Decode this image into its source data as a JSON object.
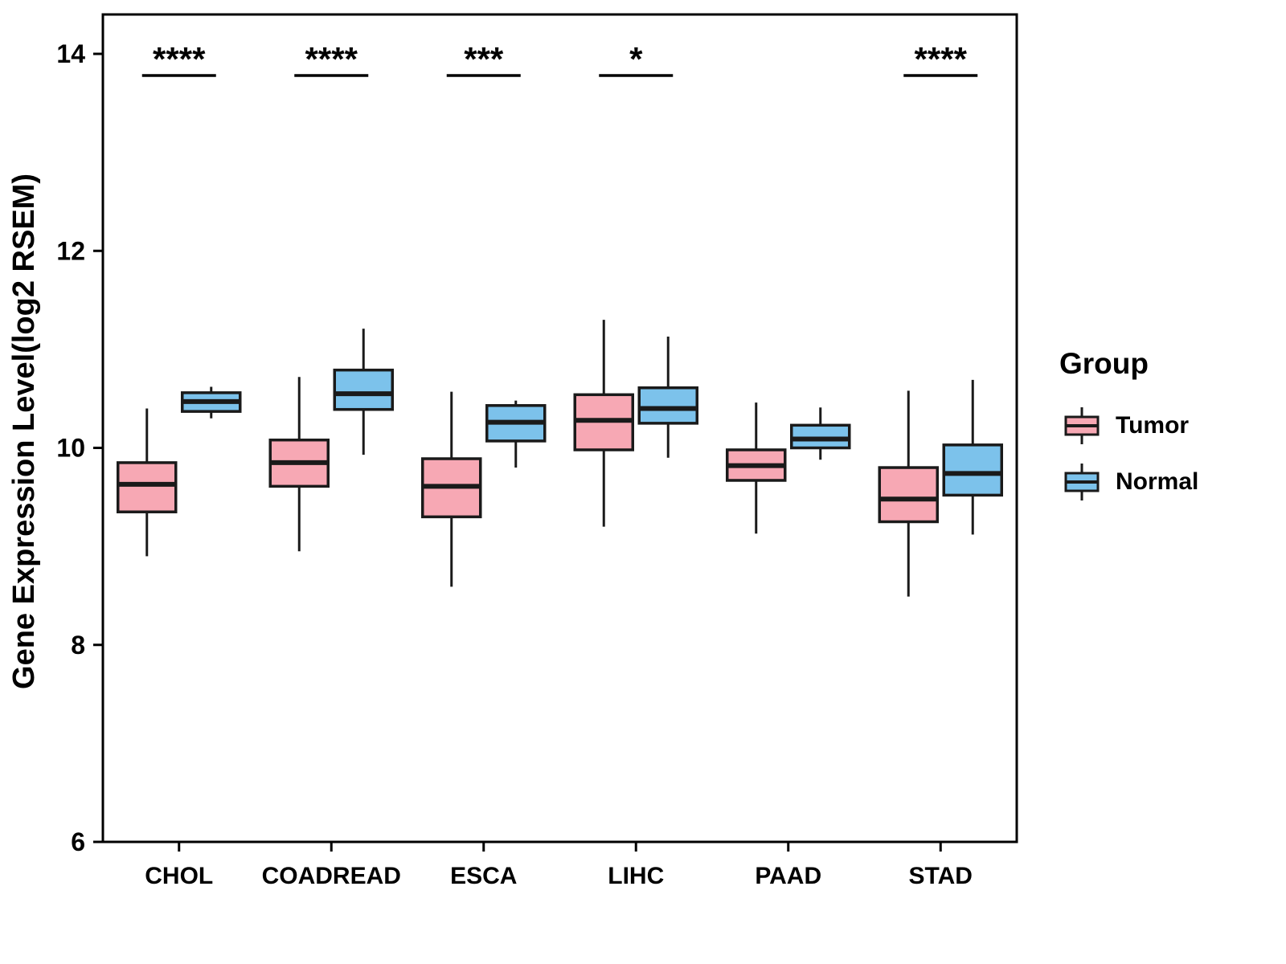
{
  "chart_data": {
    "type": "boxplot",
    "title": "",
    "xlabel": "",
    "ylabel": "Gene Expression Level(log2 RSEM)",
    "ylim": [
      6,
      14.4
    ],
    "yticks": [
      6,
      8,
      10,
      12,
      14
    ],
    "categories": [
      "CHOL",
      "COADREAD",
      "ESCA",
      "LIHC",
      "PAAD",
      "STAD"
    ],
    "significance": [
      "****",
      "****",
      "***",
      "*",
      "",
      "****"
    ],
    "significance_line_y": 13.78,
    "groups": [
      {
        "name": "Tumor",
        "color": "#F7A8B4"
      },
      {
        "name": "Normal",
        "color": "#7CC2EB"
      }
    ],
    "series": [
      {
        "category": "CHOL",
        "tumor": {
          "low": 8.9,
          "q1": 9.35,
          "median": 9.63,
          "q3": 9.85,
          "high": 10.4
        },
        "normal": {
          "low": 10.3,
          "q1": 10.37,
          "median": 10.47,
          "q3": 10.56,
          "high": 10.62
        }
      },
      {
        "category": "COADREAD",
        "tumor": {
          "low": 8.95,
          "q1": 9.61,
          "median": 9.85,
          "q3": 10.08,
          "high": 10.72
        },
        "normal": {
          "low": 9.93,
          "q1": 10.39,
          "median": 10.55,
          "q3": 10.79,
          "high": 11.21
        }
      },
      {
        "category": "ESCA",
        "tumor": {
          "low": 8.59,
          "q1": 9.3,
          "median": 9.61,
          "q3": 9.89,
          "high": 10.57
        },
        "normal": {
          "low": 9.8,
          "q1": 10.07,
          "median": 10.26,
          "q3": 10.43,
          "high": 10.48
        }
      },
      {
        "category": "LIHC",
        "tumor": {
          "low": 9.2,
          "q1": 9.98,
          "median": 10.28,
          "q3": 10.54,
          "high": 11.3
        },
        "normal": {
          "low": 9.9,
          "q1": 10.25,
          "median": 10.4,
          "q3": 10.61,
          "high": 11.13
        }
      },
      {
        "category": "PAAD",
        "tumor": {
          "low": 9.13,
          "q1": 9.67,
          "median": 9.82,
          "q3": 9.98,
          "high": 10.46
        },
        "normal": {
          "low": 9.88,
          "q1": 10.0,
          "median": 10.09,
          "q3": 10.23,
          "high": 10.41
        }
      },
      {
        "category": "STAD",
        "tumor": {
          "low": 8.49,
          "q1": 9.25,
          "median": 9.48,
          "q3": 9.8,
          "high": 10.58
        },
        "normal": {
          "low": 9.12,
          "q1": 9.52,
          "median": 9.74,
          "q3": 10.03,
          "high": 10.69
        }
      }
    ],
    "legend_position": "right",
    "grid": false
  },
  "legend": {
    "title": "Group",
    "items": [
      {
        "label": "Tumor",
        "color": "#F7A8B4"
      },
      {
        "label": "Normal",
        "color": "#7CC2EB"
      }
    ]
  }
}
